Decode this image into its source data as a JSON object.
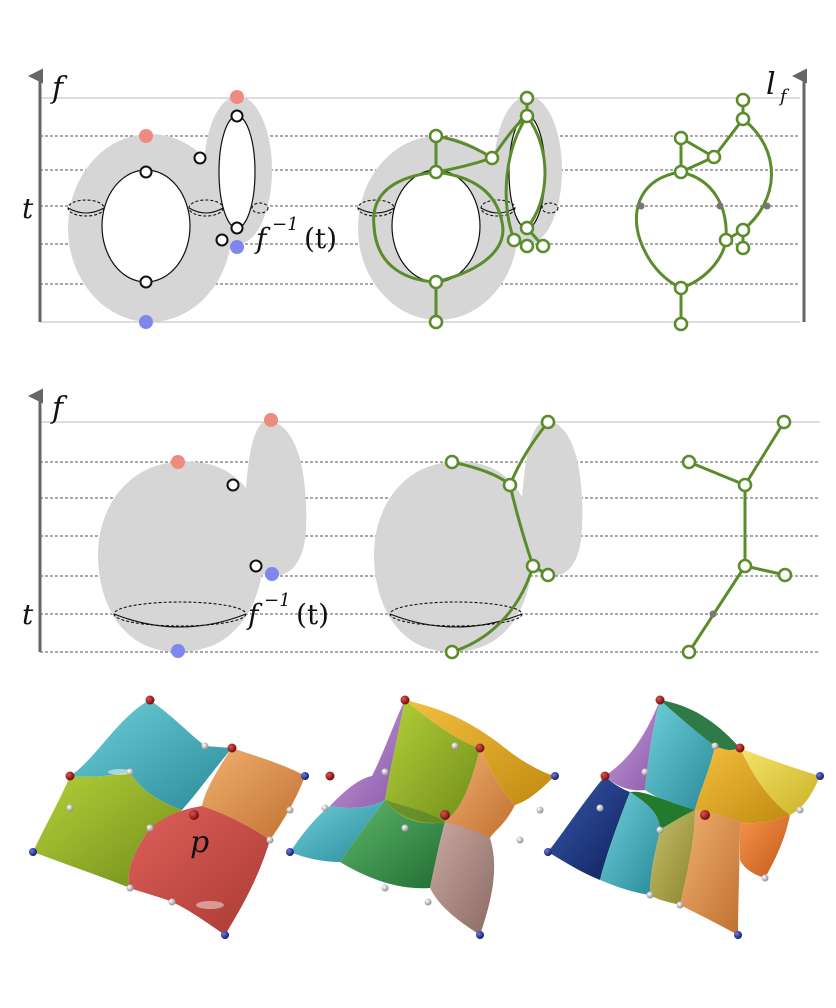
{
  "panel_top": {
    "axis_label": "f",
    "level_label": "t",
    "preimage_label": {
      "base": "f",
      "sup": "−1",
      "arg": "(t)"
    },
    "graph_label": {
      "base": "l",
      "sub": "f"
    }
  },
  "panel_middle": {
    "axis_label": "f",
    "level_label": "t",
    "preimage_label": {
      "base": "f",
      "sup": "−1",
      "arg": "(t)"
    }
  },
  "panel_bottom": {
    "point_label": "p"
  },
  "colors": {
    "max_point": "#ef8a80",
    "min_point": "#7f86ee",
    "graph_green": "#5a8c2c",
    "surface_gray": "#d6d6d6"
  }
}
